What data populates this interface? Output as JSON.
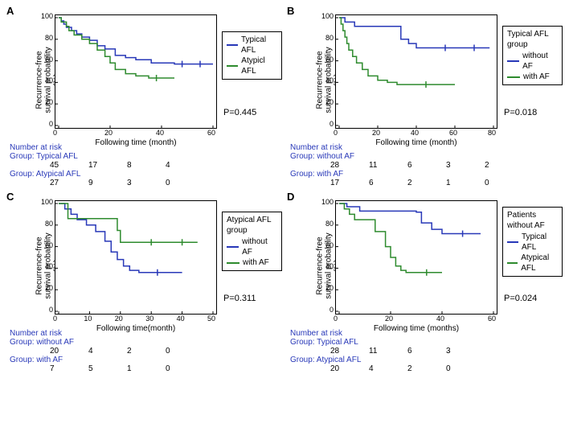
{
  "colors": {
    "series_blue": "#2838b8",
    "series_green": "#2e8b2e",
    "axis": "#000000",
    "bg": "#ffffff",
    "risk_label": "#2838b8"
  },
  "typography": {
    "axis_fontsize": 10,
    "legend_fontsize": 10,
    "pvalue_fontsize": 11,
    "panel_label_fontsize": 13
  },
  "panels": {
    "A": {
      "label": "A",
      "ylabel": "Recurrence-free\nsurvival probability (%)",
      "xlabel": "Following time (month)",
      "ylim": [
        0,
        100
      ],
      "ytick_step": 20,
      "xlim": [
        0,
        60
      ],
      "xtick_step": 20,
      "pvalue": "P=0.445",
      "legend": {
        "title": null,
        "items": [
          {
            "label": "Typical AFL",
            "color": "#2838b8"
          },
          {
            "label": "Atypicl AFL",
            "color": "#2e8b2e"
          }
        ]
      },
      "series": [
        {
          "name": "Typical AFL",
          "color": "#2838b8",
          "points": [
            [
              0,
              100
            ],
            [
              1,
              97
            ],
            [
              2,
              94
            ],
            [
              3,
              91
            ],
            [
              5,
              88
            ],
            [
              7,
              85
            ],
            [
              9,
              82
            ],
            [
              12,
              79
            ],
            [
              15,
              74
            ],
            [
              18,
              71
            ],
            [
              22,
              65
            ],
            [
              26,
              63
            ],
            [
              30,
              61
            ],
            [
              36,
              58
            ],
            [
              45,
              57
            ],
            [
              60,
              57
            ]
          ],
          "censor": [
            [
              48,
              57
            ],
            [
              55,
              57
            ]
          ]
        },
        {
          "name": "Atypicl AFL",
          "color": "#2e8b2e",
          "points": [
            [
              0,
              100
            ],
            [
              1,
              96
            ],
            [
              3,
              92
            ],
            [
              4,
              88
            ],
            [
              6,
              84
            ],
            [
              9,
              80
            ],
            [
              12,
              76
            ],
            [
              15,
              70
            ],
            [
              18,
              64
            ],
            [
              20,
              58
            ],
            [
              22,
              52
            ],
            [
              26,
              48
            ],
            [
              30,
              46
            ],
            [
              35,
              44
            ],
            [
              45,
              44
            ]
          ],
          "censor": [
            [
              38,
              44
            ]
          ]
        }
      ],
      "risk": {
        "title": "Number at risk",
        "groups": [
          {
            "name": "Group: Typical AFL",
            "counts": [
              45,
              17,
              8,
              4
            ]
          },
          {
            "name": "Group: Atypical AFL",
            "counts": [
              27,
              9,
              3,
              0
            ]
          }
        ],
        "ticks": [
          0,
          20,
          40,
          60
        ]
      }
    },
    "B": {
      "label": "B",
      "ylabel": "Recurrence-free\nsurvival probability (%)",
      "xlabel": "Following time (month)",
      "ylim": [
        0,
        100
      ],
      "ytick_step": 20,
      "xlim": [
        0,
        80
      ],
      "xtick_step": 20,
      "pvalue": "P=0.018",
      "legend": {
        "title": "Typical AFL group",
        "items": [
          {
            "label": "without AF",
            "color": "#2838b8"
          },
          {
            "label": "with AF",
            "color": "#2e8b2e"
          }
        ]
      },
      "series": [
        {
          "name": "without AF",
          "color": "#2838b8",
          "points": [
            [
              0,
              100
            ],
            [
              3,
              96
            ],
            [
              8,
              92
            ],
            [
              20,
              92
            ],
            [
              30,
              92
            ],
            [
              32,
              80
            ],
            [
              36,
              76
            ],
            [
              40,
              72
            ],
            [
              60,
              72
            ],
            [
              78,
              72
            ]
          ],
          "censor": [
            [
              55,
              72
            ],
            [
              70,
              72
            ]
          ]
        },
        {
          "name": "with AF",
          "color": "#2e8b2e",
          "points": [
            [
              0,
              100
            ],
            [
              1,
              94
            ],
            [
              2,
              88
            ],
            [
              3,
              82
            ],
            [
              4,
              76
            ],
            [
              5,
              70
            ],
            [
              7,
              64
            ],
            [
              9,
              58
            ],
            [
              12,
              52
            ],
            [
              15,
              46
            ],
            [
              20,
              42
            ],
            [
              25,
              40
            ],
            [
              30,
              38
            ],
            [
              50,
              38
            ],
            [
              60,
              38
            ]
          ],
          "censor": [
            [
              45,
              38
            ]
          ]
        }
      ],
      "risk": {
        "title": "Number at risk",
        "groups": [
          {
            "name": "Group: without AF",
            "counts": [
              28,
              11,
              6,
              3,
              2
            ]
          },
          {
            "name": "Group: with AF",
            "counts": [
              17,
              6,
              2,
              1,
              0
            ]
          }
        ],
        "ticks": [
          0,
          20,
          40,
          60,
          80
        ]
      }
    },
    "C": {
      "label": "C",
      "ylabel": "Recurrence-free\nsurvival probability (%)",
      "xlabel": "Following time(month)",
      "ylim": [
        0,
        100
      ],
      "ytick_step": 20,
      "xlim": [
        0,
        50
      ],
      "xtick_step": 10,
      "pvalue": "P=0.311",
      "legend": {
        "title": "Atypical AFL group",
        "items": [
          {
            "label": "without AF",
            "color": "#2838b8"
          },
          {
            "label": "with AF",
            "color": "#2e8b2e"
          }
        ]
      },
      "series": [
        {
          "name": "without AF",
          "color": "#2838b8",
          "points": [
            [
              0,
              100
            ],
            [
              2,
              95
            ],
            [
              4,
              90
            ],
            [
              6,
              85
            ],
            [
              9,
              80
            ],
            [
              12,
              74
            ],
            [
              15,
              65
            ],
            [
              17,
              55
            ],
            [
              19,
              48
            ],
            [
              21,
              42
            ],
            [
              23,
              38
            ],
            [
              26,
              36
            ],
            [
              40,
              36
            ]
          ],
          "censor": [
            [
              32,
              36
            ]
          ]
        },
        {
          "name": "with AF",
          "color": "#2e8b2e",
          "points": [
            [
              0,
              100
            ],
            [
              3,
              86
            ],
            [
              8,
              86
            ],
            [
              15,
              86
            ],
            [
              19,
              75
            ],
            [
              20,
              64
            ],
            [
              45,
              64
            ]
          ],
          "censor": [
            [
              30,
              64
            ],
            [
              40,
              64
            ]
          ]
        }
      ],
      "risk": {
        "title": "Number at risk",
        "groups": [
          {
            "name": "Group: without AF",
            "counts": [
              20,
              4,
              2,
              0
            ]
          },
          {
            "name": "Group: with AF",
            "counts": [
              7,
              5,
              1,
              0
            ]
          }
        ],
        "ticks": [
          0,
          17,
          34,
          50
        ]
      }
    },
    "D": {
      "label": "D",
      "ylabel": "Recurrence-free\nsurvival probability (%)",
      "xlabel": "Following time (months)",
      "ylim": [
        0,
        100
      ],
      "ytick_step": 20,
      "xlim": [
        0,
        60
      ],
      "xtick_step": 20,
      "pvalue": "P=0.024",
      "legend": {
        "title": "Patients without AF",
        "items": [
          {
            "label": "Typical AFL",
            "color": "#2838b8"
          },
          {
            "label": "Atypical AFL",
            "color": "#2e8b2e"
          }
        ]
      },
      "series": [
        {
          "name": "Typical AFL",
          "color": "#2838b8",
          "points": [
            [
              0,
              100
            ],
            [
              3,
              97
            ],
            [
              8,
              93
            ],
            [
              18,
              93
            ],
            [
              30,
              92
            ],
            [
              32,
              82
            ],
            [
              36,
              76
            ],
            [
              40,
              72
            ],
            [
              55,
              72
            ]
          ],
          "censor": [
            [
              48,
              72
            ]
          ]
        },
        {
          "name": "Atypical AFL",
          "color": "#2e8b2e",
          "points": [
            [
              0,
              100
            ],
            [
              2,
              95
            ],
            [
              4,
              90
            ],
            [
              6,
              85
            ],
            [
              9,
              85
            ],
            [
              14,
              74
            ],
            [
              18,
              60
            ],
            [
              20,
              50
            ],
            [
              22,
              42
            ],
            [
              24,
              38
            ],
            [
              26,
              36
            ],
            [
              40,
              36
            ]
          ],
          "censor": [
            [
              34,
              36
            ]
          ]
        }
      ],
      "risk": {
        "title": "Number at risk",
        "groups": [
          {
            "name": "Group: Typical AFL",
            "counts": [
              28,
              11,
              6,
              3
            ]
          },
          {
            "name": "Group: Atypical AFL",
            "counts": [
              20,
              4,
              2,
              0
            ]
          }
        ],
        "ticks": [
          0,
          20,
          40,
          60
        ]
      }
    }
  }
}
